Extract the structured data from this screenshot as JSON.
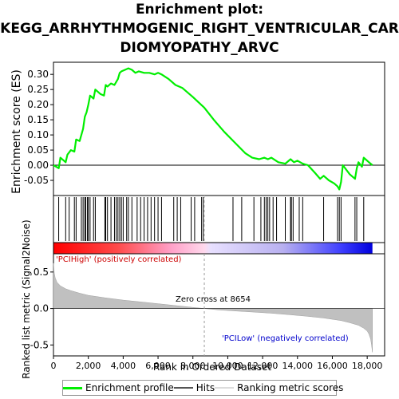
{
  "title_lines": [
    "Enrichment plot:",
    "KEGG_ARRHYTHMOGENIC_RIGHT_VENTRICULAR_CAR",
    "DIOMYOPATHY_ARVC"
  ],
  "colors": {
    "es_line": "#00ee00",
    "hits": "#000000",
    "metric_fill": "#c0c0c0",
    "pos_label": "#cc0000",
    "neg_label": "#0000cc"
  },
  "legend": {
    "enrichment": "Enrichment profile",
    "hits": "Hits",
    "metric": "Ranking metric scores"
  },
  "chart_data": {
    "type": "line",
    "title": "Enrichment plot: KEGG_ARRHYTHMOGENIC_RIGHT_VENTRICULAR_CARDIOMYOPATHY_ARVC",
    "xlabel": "Rank in Ordered Dataset",
    "ylabel_top": "Enrichment score (ES)",
    "ylabel_bottom": "Ranked list metric (Signal2Noise)",
    "xlim": [
      0,
      19000
    ],
    "x_ticks": [
      0,
      2000,
      4000,
      6000,
      8000,
      10000,
      12000,
      14000,
      16000,
      18000
    ],
    "x_tick_labels": [
      "0",
      "2,000",
      "4,000",
      "6,000",
      "8,000",
      "10,000",
      "12,000",
      "14,000",
      "16,000",
      "18,000"
    ],
    "es_ylim": [
      -0.1,
      0.34
    ],
    "es_ticks": [
      -0.05,
      0.0,
      0.05,
      0.1,
      0.15,
      0.2,
      0.25,
      0.3
    ],
    "es_tick_labels": [
      "-0.05",
      "0.00",
      "0.05",
      "0.10",
      "0.15",
      "0.20",
      "0.25",
      "0.30"
    ],
    "metric_ylim": [
      -0.65,
      0.75
    ],
    "metric_ticks": [
      -0.5,
      0.0,
      0.5
    ],
    "metric_tick_labels": [
      "-0.5",
      "0.0",
      "0.5"
    ],
    "zero_cross_label": "Zero cross at 8654",
    "zero_cross_rank": 8654,
    "pos_label": "'PCIHigh' (positively correlated)",
    "neg_label": "'PCILow' (negatively correlated)",
    "n_genes": 18300,
    "es_profile": {
      "x": [
        0,
        300,
        400,
        700,
        800,
        1000,
        1200,
        1300,
        1500,
        1700,
        1800,
        1900,
        2000,
        2100,
        2300,
        2400,
        2700,
        2900,
        3000,
        3100,
        3300,
        3500,
        3700,
        3800,
        3900,
        4100,
        4300,
        4500,
        4700,
        4900,
        5200,
        5500,
        5800,
        6000,
        6200,
        6600,
        7000,
        7400,
        8000,
        8654,
        9200,
        9800,
        10400,
        11000,
        11400,
        11800,
        12100,
        12300,
        12500,
        12900,
        13300,
        13600,
        13800,
        14000,
        14300,
        14600,
        15000,
        15300,
        15500,
        15800,
        16100,
        16300,
        16400,
        16500,
        16600,
        17000,
        17300,
        17400,
        17500,
        17700,
        17800,
        18100,
        18300
      ],
      "y": [
        0.0,
        -0.01,
        0.025,
        0.01,
        0.035,
        0.05,
        0.045,
        0.085,
        0.08,
        0.12,
        0.16,
        0.175,
        0.2,
        0.23,
        0.22,
        0.25,
        0.235,
        0.23,
        0.265,
        0.26,
        0.27,
        0.265,
        0.285,
        0.305,
        0.31,
        0.315,
        0.32,
        0.315,
        0.305,
        0.31,
        0.305,
        0.305,
        0.3,
        0.305,
        0.3,
        0.285,
        0.265,
        0.255,
        0.225,
        0.19,
        0.15,
        0.11,
        0.075,
        0.04,
        0.025,
        0.02,
        0.025,
        0.02,
        0.025,
        0.01,
        0.005,
        0.02,
        0.01,
        0.015,
        0.005,
        0.0,
        -0.025,
        -0.045,
        -0.035,
        -0.05,
        -0.06,
        -0.07,
        -0.08,
        -0.055,
        0.0,
        -0.03,
        -0.045,
        -0.01,
        0.01,
        -0.005,
        0.025,
        0.01,
        0.0
      ]
    },
    "hits": [
      300,
      700,
      900,
      1200,
      1300,
      1600,
      1700,
      1800,
      1850,
      1950,
      2000,
      2100,
      2300,
      2400,
      2950,
      3000,
      3100,
      3300,
      3500,
      3600,
      3700,
      3800,
      3900,
      4000,
      4200,
      4300,
      4500,
      4800,
      5000,
      5200,
      5400,
      5600,
      5800,
      6000,
      6200,
      6900,
      7100,
      7300,
      7900,
      8100,
      8500,
      8600,
      10300,
      10800,
      11500,
      11900,
      12100,
      12200,
      12300,
      12400,
      12600,
      12800,
      13300,
      13600,
      13650,
      13750,
      14100,
      14300,
      15500,
      16300,
      16400,
      16500,
      17300,
      17400,
      17800
    ],
    "metric_profile": {
      "x": [
        0,
        50,
        100,
        200,
        400,
        700,
        1000,
        1500,
        2000,
        3000,
        4000,
        5000,
        6000,
        7000,
        8000,
        8654,
        9500,
        10500,
        11500,
        12500,
        13500,
        14500,
        15500,
        16500,
        17000,
        17500,
        17800,
        18000,
        18100,
        18200,
        18250,
        18300
      ],
      "y": [
        0.62,
        0.48,
        0.42,
        0.36,
        0.31,
        0.27,
        0.245,
        0.21,
        0.18,
        0.145,
        0.115,
        0.09,
        0.065,
        0.04,
        0.015,
        0.0,
        -0.02,
        -0.035,
        -0.05,
        -0.065,
        -0.085,
        -0.105,
        -0.13,
        -0.165,
        -0.195,
        -0.23,
        -0.27,
        -0.31,
        -0.35,
        -0.42,
        -0.5,
        -0.6
      ]
    }
  }
}
